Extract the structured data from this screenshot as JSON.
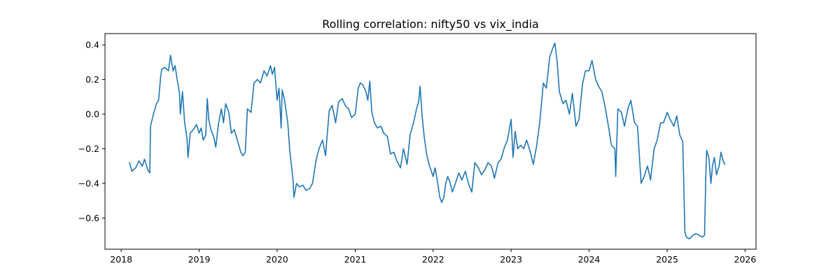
{
  "chart_data": {
    "type": "line",
    "title": "Rolling correlation: nifty50 vs vix_india",
    "xlabel": "",
    "ylabel": "",
    "x_axis": "date",
    "xlim": [
      "2017-10-17",
      "2026-02-21"
    ],
    "ylim": [
      -0.78,
      0.465
    ],
    "grid": false,
    "legend": null,
    "line_color": "#1f77b4",
    "x_ticks": [
      "2018",
      "2019",
      "2020",
      "2021",
      "2022",
      "2023",
      "2024",
      "2025",
      "2026"
    ],
    "y_ticks": [
      {
        "value": 0.4,
        "label": "0.4"
      },
      {
        "value": 0.2,
        "label": "0.2"
      },
      {
        "value": 0.0,
        "label": "0.0"
      },
      {
        "value": -0.2,
        "label": "−0.2"
      },
      {
        "value": -0.4,
        "label": "−0.4"
      },
      {
        "value": -0.6,
        "label": "−0.6"
      }
    ],
    "series": [
      {
        "points": [
          [
            "2018-02-09",
            -0.28
          ],
          [
            "2018-02-20",
            -0.33
          ],
          [
            "2018-03-10",
            -0.31
          ],
          [
            "2018-03-25",
            -0.27
          ],
          [
            "2018-04-10",
            -0.3
          ],
          [
            "2018-04-20",
            -0.26
          ],
          [
            "2018-05-05",
            -0.32
          ],
          [
            "2018-05-15",
            -0.34
          ],
          [
            "2018-05-18",
            -0.07
          ],
          [
            "2018-06-01",
            0.0
          ],
          [
            "2018-06-15",
            0.06
          ],
          [
            "2018-06-25",
            0.08
          ],
          [
            "2018-07-05",
            0.22
          ],
          [
            "2018-07-10",
            0.26
          ],
          [
            "2018-07-25",
            0.27
          ],
          [
            "2018-08-10",
            0.25
          ],
          [
            "2018-08-20",
            0.34
          ],
          [
            "2018-09-01",
            0.25
          ],
          [
            "2018-09-10",
            0.28
          ],
          [
            "2018-09-20",
            0.2
          ],
          [
            "2018-10-01",
            0.12
          ],
          [
            "2018-10-05",
            0.0
          ],
          [
            "2018-10-15",
            0.13
          ],
          [
            "2018-10-25",
            -0.05
          ],
          [
            "2018-11-05",
            -0.14
          ],
          [
            "2018-11-10",
            -0.25
          ],
          [
            "2018-11-20",
            -0.11
          ],
          [
            "2018-12-05",
            -0.09
          ],
          [
            "2018-12-20",
            -0.06
          ],
          [
            "2019-01-01",
            -0.11
          ],
          [
            "2019-01-10",
            -0.08
          ],
          [
            "2019-01-20",
            -0.15
          ],
          [
            "2019-02-01",
            -0.12
          ],
          [
            "2019-02-08",
            0.09
          ],
          [
            "2019-02-15",
            -0.03
          ],
          [
            "2019-02-25",
            -0.09
          ],
          [
            "2019-03-10",
            -0.13
          ],
          [
            "2019-03-20",
            -0.19
          ],
          [
            "2019-04-01",
            -0.06
          ],
          [
            "2019-04-15",
            0.03
          ],
          [
            "2019-04-25",
            -0.05
          ],
          [
            "2019-05-05",
            0.06
          ],
          [
            "2019-05-20",
            0.01
          ],
          [
            "2019-06-01",
            -0.11
          ],
          [
            "2019-06-15",
            -0.09
          ],
          [
            "2019-07-01",
            -0.16
          ],
          [
            "2019-07-15",
            -0.22
          ],
          [
            "2019-07-25",
            -0.24
          ],
          [
            "2019-08-05",
            -0.22
          ],
          [
            "2019-08-15",
            0.03
          ],
          [
            "2019-09-01",
            0.01
          ],
          [
            "2019-09-15",
            0.18
          ],
          [
            "2019-10-01",
            0.2
          ],
          [
            "2019-10-15",
            0.18
          ],
          [
            "2019-11-01",
            0.25
          ],
          [
            "2019-11-15",
            0.22
          ],
          [
            "2019-12-01",
            0.28
          ],
          [
            "2019-12-10",
            0.23
          ],
          [
            "2019-12-20",
            0.27
          ],
          [
            "2020-01-01",
            0.08
          ],
          [
            "2020-01-10",
            0.15
          ],
          [
            "2020-01-20",
            -0.08
          ],
          [
            "2020-01-25",
            0.14
          ],
          [
            "2020-02-05",
            0.08
          ],
          [
            "2020-02-20",
            -0.05
          ],
          [
            "2020-03-01",
            -0.22
          ],
          [
            "2020-03-15",
            -0.37
          ],
          [
            "2020-03-20",
            -0.48
          ],
          [
            "2020-04-01",
            -0.4
          ],
          [
            "2020-04-15",
            -0.42
          ],
          [
            "2020-05-01",
            -0.41
          ],
          [
            "2020-05-15",
            -0.44
          ],
          [
            "2020-06-01",
            -0.43
          ],
          [
            "2020-06-15",
            -0.4
          ],
          [
            "2020-07-01",
            -0.27
          ],
          [
            "2020-07-15",
            -0.2
          ],
          [
            "2020-08-01",
            -0.15
          ],
          [
            "2020-08-15",
            -0.24
          ],
          [
            "2020-09-01",
            0.02
          ],
          [
            "2020-09-15",
            0.05
          ],
          [
            "2020-10-01",
            -0.05
          ],
          [
            "2020-10-15",
            0.07
          ],
          [
            "2020-11-01",
            0.09
          ],
          [
            "2020-11-15",
            0.05
          ],
          [
            "2020-12-01",
            0.03
          ],
          [
            "2020-12-15",
            -0.02
          ],
          [
            "2021-01-01",
            0.0
          ],
          [
            "2021-01-15",
            0.15
          ],
          [
            "2021-01-25",
            0.18
          ],
          [
            "2021-02-05",
            0.17
          ],
          [
            "2021-02-20",
            0.13
          ],
          [
            "2021-03-01",
            0.08
          ],
          [
            "2021-03-10",
            0.19
          ],
          [
            "2021-03-20",
            0.01
          ],
          [
            "2021-04-01",
            -0.05
          ],
          [
            "2021-04-15",
            -0.08
          ],
          [
            "2021-05-01",
            -0.07
          ],
          [
            "2021-05-15",
            -0.11
          ],
          [
            "2021-06-01",
            -0.13
          ],
          [
            "2021-06-15",
            -0.23
          ],
          [
            "2021-07-01",
            -0.22
          ],
          [
            "2021-07-15",
            -0.27
          ],
          [
            "2021-08-01",
            -0.31
          ],
          [
            "2021-08-15",
            -0.2
          ],
          [
            "2021-09-01",
            -0.29
          ],
          [
            "2021-09-15",
            -0.12
          ],
          [
            "2021-10-01",
            -0.05
          ],
          [
            "2021-10-15",
            0.03
          ],
          [
            "2021-10-25",
            0.07
          ],
          [
            "2021-11-01",
            0.16
          ],
          [
            "2021-11-10",
            -0.01
          ],
          [
            "2021-11-20",
            -0.13
          ],
          [
            "2021-12-01",
            -0.23
          ],
          [
            "2021-12-15",
            -0.3
          ],
          [
            "2022-01-01",
            -0.36
          ],
          [
            "2022-01-10",
            -0.31
          ],
          [
            "2022-01-20",
            -0.38
          ],
          [
            "2022-02-01",
            -0.48
          ],
          [
            "2022-02-10",
            -0.51
          ],
          [
            "2022-02-20",
            -0.48
          ],
          [
            "2022-03-01",
            -0.4
          ],
          [
            "2022-03-10",
            -0.36
          ],
          [
            "2022-03-20",
            -0.39
          ],
          [
            "2022-04-01",
            -0.45
          ],
          [
            "2022-04-15",
            -0.4
          ],
          [
            "2022-05-01",
            -0.34
          ],
          [
            "2022-05-15",
            -0.38
          ],
          [
            "2022-06-01",
            -0.33
          ],
          [
            "2022-06-15",
            -0.4
          ],
          [
            "2022-07-01",
            -0.45
          ],
          [
            "2022-07-15",
            -0.28
          ],
          [
            "2022-08-01",
            -0.31
          ],
          [
            "2022-08-15",
            -0.35
          ],
          [
            "2022-09-01",
            -0.32
          ],
          [
            "2022-09-15",
            -0.28
          ],
          [
            "2022-10-01",
            -0.3
          ],
          [
            "2022-10-15",
            -0.37
          ],
          [
            "2022-11-01",
            -0.28
          ],
          [
            "2022-11-15",
            -0.26
          ],
          [
            "2022-12-01",
            -0.19
          ],
          [
            "2022-12-15",
            -0.15
          ],
          [
            "2023-01-01",
            -0.03
          ],
          [
            "2023-01-10",
            -0.25
          ],
          [
            "2023-01-20",
            -0.1
          ],
          [
            "2023-02-01",
            -0.2
          ],
          [
            "2023-02-15",
            -0.18
          ],
          [
            "2023-03-01",
            -0.2
          ],
          [
            "2023-03-15",
            -0.15
          ],
          [
            "2023-04-01",
            -0.22
          ],
          [
            "2023-04-15",
            -0.29
          ],
          [
            "2023-05-01",
            -0.18
          ],
          [
            "2023-05-15",
            -0.05
          ],
          [
            "2023-06-01",
            0.18
          ],
          [
            "2023-06-15",
            0.15
          ],
          [
            "2023-07-01",
            0.33
          ],
          [
            "2023-07-15",
            0.38
          ],
          [
            "2023-07-25",
            0.41
          ],
          [
            "2023-08-05",
            0.3
          ],
          [
            "2023-08-15",
            0.13
          ],
          [
            "2023-09-01",
            0.06
          ],
          [
            "2023-09-15",
            0.08
          ],
          [
            "2023-10-01",
            0.0
          ],
          [
            "2023-10-15",
            0.12
          ],
          [
            "2023-11-01",
            -0.07
          ],
          [
            "2023-11-15",
            -0.03
          ],
          [
            "2023-12-01",
            0.17
          ],
          [
            "2023-12-15",
            0.25
          ],
          [
            "2024-01-01",
            0.25
          ],
          [
            "2024-01-15",
            0.31
          ],
          [
            "2024-02-01",
            0.2
          ],
          [
            "2024-02-15",
            0.16
          ],
          [
            "2024-03-01",
            0.13
          ],
          [
            "2024-03-15",
            0.05
          ],
          [
            "2024-04-01",
            -0.07
          ],
          [
            "2024-04-15",
            -0.18
          ],
          [
            "2024-05-01",
            -0.2
          ],
          [
            "2024-05-05",
            -0.36
          ],
          [
            "2024-05-15",
            0.03
          ],
          [
            "2024-06-01",
            0.01
          ],
          [
            "2024-06-15",
            -0.07
          ],
          [
            "2024-07-01",
            0.03
          ],
          [
            "2024-07-15",
            0.08
          ],
          [
            "2024-08-01",
            -0.05
          ],
          [
            "2024-08-15",
            -0.07
          ],
          [
            "2024-09-01",
            -0.4
          ],
          [
            "2024-09-15",
            -0.36
          ],
          [
            "2024-10-01",
            -0.3
          ],
          [
            "2024-10-15",
            -0.38
          ],
          [
            "2024-11-01",
            -0.2
          ],
          [
            "2024-11-15",
            -0.15
          ],
          [
            "2024-12-01",
            -0.05
          ],
          [
            "2024-12-15",
            -0.05
          ],
          [
            "2025-01-01",
            0.01
          ],
          [
            "2025-01-15",
            -0.03
          ],
          [
            "2025-02-01",
            -0.07
          ],
          [
            "2025-02-15",
            -0.01
          ],
          [
            "2025-03-01",
            -0.12
          ],
          [
            "2025-03-15",
            -0.16
          ],
          [
            "2025-03-25",
            -0.68
          ],
          [
            "2025-04-01",
            -0.71
          ],
          [
            "2025-04-15",
            -0.72
          ],
          [
            "2025-05-01",
            -0.7
          ],
          [
            "2025-05-15",
            -0.69
          ],
          [
            "2025-06-01",
            -0.7
          ],
          [
            "2025-06-15",
            -0.71
          ],
          [
            "2025-06-25",
            -0.7
          ],
          [
            "2025-07-01",
            -0.35
          ],
          [
            "2025-07-05",
            -0.21
          ],
          [
            "2025-07-15",
            -0.25
          ],
          [
            "2025-07-25",
            -0.4
          ],
          [
            "2025-08-01",
            -0.3
          ],
          [
            "2025-08-10",
            -0.25
          ],
          [
            "2025-08-20",
            -0.35
          ],
          [
            "2025-09-01",
            -0.3
          ],
          [
            "2025-09-10",
            -0.22
          ],
          [
            "2025-09-20",
            -0.27
          ],
          [
            "2025-09-28",
            -0.29
          ]
        ]
      }
    ]
  }
}
